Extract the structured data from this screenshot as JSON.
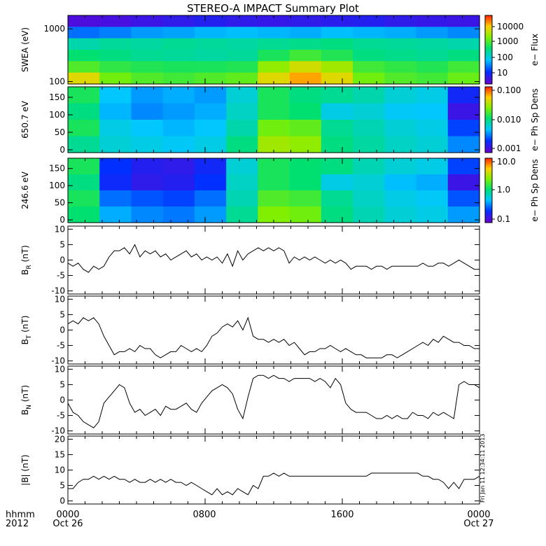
{
  "title": "STEREO-A IMPACT Summary Plot",
  "x_axis": {
    "ticks": [
      "0000",
      "0800",
      "1600",
      "0000"
    ],
    "dates": [
      "Oct 26",
      "",
      "",
      "Oct 27"
    ],
    "row_label_1": "hhmm",
    "row_label_2": "2012"
  },
  "timestamp_note": "Fri Jan 11 12:34:11 2013",
  "panel_labels": {
    "swea": "SWEA (eV)",
    "pad650": "650.7 eV",
    "pad246": "246.6 eV",
    "br_main": "B",
    "br_sub": "R",
    "br_unit": " (nT)",
    "bt_main": "B",
    "bt_sub": "T",
    "bt_unit": " (nT)",
    "bn_main": "B",
    "bn_sub": "N",
    "bn_unit": " (nT)",
    "bmag": "|B| (nT)"
  },
  "colorbars": [
    {
      "label": "e− Flux",
      "ticks": [
        "10000",
        "1000",
        "100",
        "10"
      ]
    },
    {
      "label": "e− Ph Sp Dens",
      "ticks": [
        "0.100",
        "0.010",
        "0.001"
      ]
    },
    {
      "label": "e− Ph Sp Dens",
      "ticks": [
        "10.0",
        "1.0",
        "0.1"
      ]
    }
  ],
  "chart_data": [
    {
      "type": "heatmap",
      "name": "swea",
      "ylabel": "SWEA (eV)",
      "ylog": true,
      "yticks": [
        100,
        1000
      ],
      "ylim": [
        90,
        1800
      ],
      "xlim": [
        0,
        24
      ],
      "colorbar": "e− Flux",
      "scale": "log",
      "rows": 6,
      "cells": [
        [
          0.05,
          0.06,
          0.08,
          0.1,
          0.12,
          0.1,
          0.09,
          0.1,
          0.11,
          0.12,
          0.1,
          0.09,
          0.08
        ],
        [
          0.25,
          0.27,
          0.3,
          0.31,
          0.33,
          0.34,
          0.33,
          0.32,
          0.34,
          0.33,
          0.32,
          0.3,
          0.28
        ],
        [
          0.45,
          0.47,
          0.46,
          0.48,
          0.47,
          0.46,
          0.48,
          0.49,
          0.5,
          0.48,
          0.47,
          0.46,
          0.45
        ],
        [
          0.52,
          0.5,
          0.48,
          0.47,
          0.46,
          0.47,
          0.55,
          0.6,
          0.56,
          0.5,
          0.49,
          0.48,
          0.5
        ],
        [
          0.62,
          0.58,
          0.56,
          0.55,
          0.55,
          0.56,
          0.7,
          0.78,
          0.72,
          0.6,
          0.58,
          0.56,
          0.6
        ],
        [
          0.8,
          0.66,
          0.62,
          0.6,
          0.62,
          0.64,
          0.8,
          0.88,
          0.8,
          0.66,
          0.62,
          0.6,
          0.65
        ]
      ]
    },
    {
      "type": "heatmap",
      "name": "pad650",
      "ylabel": "650.7 eV",
      "yticks": [
        0,
        50,
        100,
        150
      ],
      "ylim": [
        -8,
        180
      ],
      "xlim": [
        0,
        24
      ],
      "colorbar": "e− Ph Sp Dens",
      "scale": "log",
      "rows": 4,
      "cells": [
        [
          0.55,
          0.35,
          0.3,
          0.32,
          0.3,
          0.4,
          0.55,
          0.5,
          0.48,
          0.45,
          0.4,
          0.38,
          0.15
        ],
        [
          0.5,
          0.33,
          0.28,
          0.3,
          0.32,
          0.42,
          0.55,
          0.52,
          0.38,
          0.4,
          0.36,
          0.35,
          0.08
        ],
        [
          0.55,
          0.38,
          0.35,
          0.33,
          0.35,
          0.45,
          0.66,
          0.64,
          0.48,
          0.44,
          0.4,
          0.38,
          0.2
        ],
        [
          0.48,
          0.4,
          0.38,
          0.36,
          0.38,
          0.5,
          0.72,
          0.7,
          0.5,
          0.46,
          0.42,
          0.4,
          0.28
        ]
      ]
    },
    {
      "type": "heatmap",
      "name": "pad246",
      "ylabel": "246.6 eV",
      "yticks": [
        0,
        50,
        100,
        150
      ],
      "ylim": [
        -8,
        180
      ],
      "xlim": [
        0,
        24
      ],
      "colorbar": "e− Ph Sp Dens",
      "scale": "log",
      "rows": 4,
      "cells": [
        [
          0.55,
          0.18,
          0.12,
          0.1,
          0.15,
          0.4,
          0.55,
          0.52,
          0.5,
          0.44,
          0.4,
          0.38,
          0.2
        ],
        [
          0.5,
          0.16,
          0.1,
          0.12,
          0.18,
          0.42,
          0.55,
          0.52,
          0.38,
          0.4,
          0.34,
          0.32,
          0.08
        ],
        [
          0.55,
          0.25,
          0.22,
          0.2,
          0.25,
          0.44,
          0.62,
          0.6,
          0.48,
          0.42,
          0.38,
          0.36,
          0.22
        ],
        [
          0.52,
          0.32,
          0.28,
          0.26,
          0.3,
          0.48,
          0.68,
          0.66,
          0.5,
          0.44,
          0.4,
          0.38,
          0.3
        ]
      ]
    },
    {
      "type": "line",
      "name": "BR",
      "ylabel": "BR (nT)",
      "ylim": [
        -11,
        11
      ],
      "yticks": [
        10,
        5,
        0,
        -5,
        -10
      ],
      "xlim": [
        0,
        24
      ],
      "x": [
        0,
        0.3,
        0.6,
        0.9,
        1.2,
        1.5,
        1.8,
        2.1,
        2.4,
        2.7,
        3.0,
        3.3,
        3.6,
        3.9,
        4.2,
        4.5,
        4.8,
        5.1,
        5.4,
        5.7,
        6.0,
        6.3,
        6.6,
        6.9,
        7.2,
        7.5,
        7.8,
        8.1,
        8.4,
        8.7,
        9.0,
        9.3,
        9.6,
        9.9,
        10.2,
        10.5,
        10.8,
        11.1,
        11.4,
        11.7,
        12.0,
        12.3,
        12.6,
        12.9,
        13.2,
        13.5,
        13.8,
        14.1,
        14.4,
        14.7,
        15.0,
        15.3,
        15.6,
        15.9,
        16.2,
        16.5,
        16.8,
        17.1,
        17.4,
        17.7,
        18.0,
        18.3,
        18.6,
        18.9,
        19.2,
        19.5,
        19.8,
        20.1,
        20.4,
        20.7,
        21.0,
        21.3,
        21.6,
        21.9,
        22.2,
        22.5,
        22.8,
        23.1,
        23.4,
        23.7,
        24.0
      ],
      "y": [
        -1,
        -2,
        -1,
        -3,
        -4,
        -2,
        -3,
        -2,
        1,
        3,
        3,
        4,
        2,
        5,
        1,
        3,
        2,
        3,
        1,
        2,
        0,
        1,
        2,
        3,
        1,
        2,
        0,
        1,
        0,
        1,
        -1,
        2,
        -2,
        3,
        0,
        2,
        3,
        4,
        3,
        4,
        3,
        4,
        3,
        -1,
        1,
        0,
        1,
        0,
        1,
        0,
        -1,
        0,
        -1,
        0,
        -1,
        -3,
        -2,
        -2,
        -2,
        -3,
        -2,
        -2,
        -3,
        -2,
        -2,
        -2,
        -2,
        -2,
        -2,
        -1,
        -2,
        -2,
        -1,
        -1,
        -2,
        -1,
        0,
        -1,
        -2,
        -3,
        -3
      ]
    },
    {
      "type": "line",
      "name": "BT",
      "ylabel": "BT (nT)",
      "ylim": [
        -11,
        11
      ],
      "yticks": [
        10,
        5,
        0,
        -5,
        -10
      ],
      "xlim": [
        0,
        24
      ],
      "x": [
        0,
        0.3,
        0.6,
        0.9,
        1.2,
        1.5,
        1.8,
        2.1,
        2.4,
        2.7,
        3.0,
        3.3,
        3.6,
        3.9,
        4.2,
        4.5,
        4.8,
        5.1,
        5.4,
        5.7,
        6.0,
        6.3,
        6.6,
        6.9,
        7.2,
        7.5,
        7.8,
        8.1,
        8.4,
        8.7,
        9.0,
        9.3,
        9.6,
        9.9,
        10.2,
        10.5,
        10.8,
        11.1,
        11.4,
        11.7,
        12.0,
        12.3,
        12.6,
        12.9,
        13.2,
        13.5,
        13.8,
        14.1,
        14.4,
        14.7,
        15.0,
        15.3,
        15.6,
        15.9,
        16.2,
        16.5,
        16.8,
        17.1,
        17.4,
        17.7,
        18.0,
        18.3,
        18.6,
        18.9,
        19.2,
        19.5,
        19.8,
        20.1,
        20.4,
        20.7,
        21.0,
        21.3,
        21.6,
        21.9,
        22.2,
        22.5,
        22.8,
        23.1,
        23.4,
        23.7,
        24.0
      ],
      "y": [
        2,
        3,
        2,
        4,
        3,
        4,
        2,
        -2,
        -5,
        -8,
        -7,
        -7,
        -6,
        -7,
        -5,
        -6,
        -6,
        -8,
        -9,
        -8,
        -7,
        -7,
        -5,
        -6,
        -7,
        -6,
        -7,
        -5,
        -2,
        -1,
        1,
        2,
        1,
        3,
        0,
        4,
        -2,
        -3,
        -3,
        -4,
        -3,
        -4,
        -3,
        -5,
        -4,
        -6,
        -8,
        -7,
        -7,
        -6,
        -6,
        -5,
        -6,
        -7,
        -6,
        -7,
        -8,
        -8,
        -9,
        -9,
        -9,
        -9,
        -8,
        -8,
        -9,
        -8,
        -7,
        -6,
        -5,
        -4,
        -5,
        -3,
        -4,
        -2,
        -3,
        -4,
        -4,
        -5,
        -5,
        -6,
        -6
      ]
    },
    {
      "type": "line",
      "name": "BN",
      "ylabel": "BN (nT)",
      "ylim": [
        -11,
        11
      ],
      "yticks": [
        10,
        5,
        0,
        -5,
        -10
      ],
      "xlim": [
        0,
        24
      ],
      "x": [
        0,
        0.3,
        0.6,
        0.9,
        1.2,
        1.5,
        1.8,
        2.1,
        2.4,
        2.7,
        3.0,
        3.3,
        3.6,
        3.9,
        4.2,
        4.5,
        4.8,
        5.1,
        5.4,
        5.7,
        6.0,
        6.3,
        6.6,
        6.9,
        7.2,
        7.5,
        7.8,
        8.1,
        8.4,
        8.7,
        9.0,
        9.3,
        9.6,
        9.9,
        10.2,
        10.5,
        10.8,
        11.1,
        11.4,
        11.7,
        12.0,
        12.3,
        12.6,
        12.9,
        13.2,
        13.5,
        13.8,
        14.1,
        14.4,
        14.7,
        15.0,
        15.3,
        15.6,
        15.9,
        16.2,
        16.5,
        16.8,
        17.1,
        17.4,
        17.7,
        18.0,
        18.3,
        18.6,
        18.9,
        19.2,
        19.5,
        19.8,
        20.1,
        20.4,
        20.7,
        21.0,
        21.3,
        21.6,
        21.9,
        22.2,
        22.5,
        22.8,
        23.1,
        23.4,
        23.7,
        24.0
      ],
      "y": [
        -1,
        -4,
        -5,
        -7,
        -8,
        -9,
        -7,
        -1,
        1,
        3,
        5,
        4,
        -1,
        -4,
        -3,
        -5,
        -4,
        -3,
        -5,
        -2,
        -3,
        -3,
        -2,
        -1,
        -3,
        -4,
        -1,
        1,
        3,
        4,
        5,
        4,
        2,
        -3,
        -6,
        1,
        7,
        8,
        8,
        7,
        8,
        7,
        7,
        6,
        7,
        7,
        7,
        7,
        6,
        7,
        6,
        4,
        7,
        5,
        -1,
        -3,
        -4,
        -4,
        -4,
        -5,
        -6,
        -6,
        -5,
        -6,
        -5,
        -6,
        -6,
        -4,
        -5,
        -5,
        -6,
        -4,
        -5,
        -4,
        -5,
        -6,
        5,
        6,
        5,
        5,
        4
      ]
    },
    {
      "type": "line",
      "name": "Bmag",
      "ylabel": "|B| (nT)",
      "ylim": [
        -1,
        21
      ],
      "yticks": [
        20,
        15,
        10,
        5,
        0
      ],
      "xlim": [
        0,
        24
      ],
      "x": [
        0,
        0.3,
        0.6,
        0.9,
        1.2,
        1.5,
        1.8,
        2.1,
        2.4,
        2.7,
        3.0,
        3.3,
        3.6,
        3.9,
        4.2,
        4.5,
        4.8,
        5.1,
        5.4,
        5.7,
        6.0,
        6.3,
        6.6,
        6.9,
        7.2,
        7.5,
        7.8,
        8.1,
        8.4,
        8.7,
        9.0,
        9.3,
        9.6,
        9.9,
        10.2,
        10.5,
        10.8,
        11.1,
        11.4,
        11.7,
        12.0,
        12.3,
        12.6,
        12.9,
        13.2,
        13.5,
        13.8,
        14.1,
        14.4,
        14.7,
        15.0,
        15.3,
        15.6,
        15.9,
        16.2,
        16.5,
        16.8,
        17.1,
        17.4,
        17.7,
        18.0,
        18.3,
        18.6,
        18.9,
        19.2,
        19.5,
        19.8,
        20.1,
        20.4,
        20.7,
        21.0,
        21.3,
        21.6,
        21.9,
        22.2,
        22.5,
        22.8,
        23.1,
        23.4,
        23.7,
        24.0
      ],
      "y": [
        4,
        4,
        6,
        7,
        7,
        8,
        7,
        8,
        7,
        8,
        7,
        7,
        6,
        7,
        6,
        6,
        7,
        6,
        7,
        6,
        7,
        6,
        6,
        5,
        6,
        5,
        4,
        3,
        2,
        4,
        2,
        3,
        2,
        4,
        3,
        2,
        5,
        4,
        8,
        8,
        9,
        8,
        9,
        8,
        8,
        8,
        8,
        8,
        8,
        8,
        8,
        8,
        8,
        8,
        8,
        8,
        8,
        8,
        8,
        9,
        9,
        9,
        9,
        9,
        9,
        9,
        9,
        9,
        9,
        8,
        8,
        7,
        7,
        6,
        4,
        6,
        4,
        7,
        7,
        7,
        8
      ]
    }
  ]
}
